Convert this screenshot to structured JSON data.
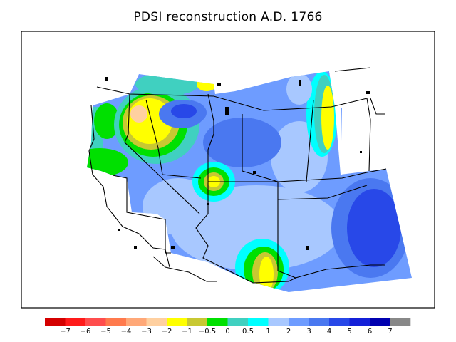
{
  "title": "PDSI reconstruction A.D. 1766",
  "legend": {
    "colors": [
      "#d40000",
      "#ff1a1a",
      "#ff4d4d",
      "#ff7a4d",
      "#ffa878",
      "#ffd0a0",
      "#ffff00",
      "#c8c832",
      "#00e000",
      "#40d0c0",
      "#00ffff",
      "#a8c8ff",
      "#6e9cff",
      "#4a78f0",
      "#2848e8",
      "#1420d8",
      "#0000b0",
      "#888888"
    ],
    "labels": [
      "−7",
      "−6",
      "−5",
      "−4",
      "−3",
      "−2",
      "−1",
      "−0.5",
      "0",
      "0.5",
      "1",
      "2",
      "3",
      "4",
      "5",
      "6",
      "7"
    ]
  }
}
